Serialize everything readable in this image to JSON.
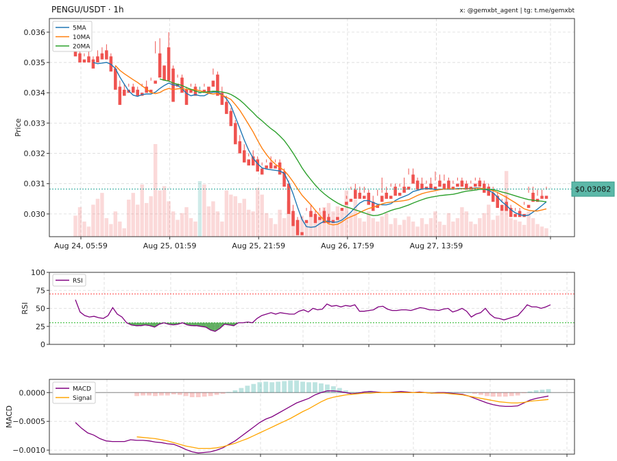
{
  "header": {
    "title": "PENGU/USDT · 1h",
    "credit": "x: @gemxbt_agent | tg: t.me/gemxbt"
  },
  "price_tag": "$0.03082",
  "colors": {
    "up": "#26a69a",
    "down": "#ef5350",
    "ma5": "#1f77b4",
    "ma10": "#ff7f0e",
    "ma20": "#2ca02c",
    "rsi": "#800080",
    "macd": "#800080",
    "signal": "#ffa500",
    "overbought": "#ff0000",
    "oversold": "#00aa00",
    "price_tag_bg": "#5cb8a8",
    "price_line": "#26a69a"
  },
  "chart_data": [
    {
      "type": "candlestick",
      "panel": "price",
      "ylabel": "Price",
      "ylim": [
        0.02925,
        0.03645
      ],
      "yticks": [
        0.03,
        0.031,
        0.032,
        0.033,
        0.034,
        0.035,
        0.036
      ],
      "ytick_labels": [
        "0.030",
        "0.031",
        "0.032",
        "0.033",
        "0.034",
        "0.035",
        "0.036"
      ],
      "xtick_labels": [
        "Aug 24, 05:59",
        "Aug 25, 01:59",
        "Aug 25, 21:59",
        "Aug 26, 17:59",
        "Aug 27, 13:59"
      ],
      "xtick_index": [
        0,
        20,
        40,
        60,
        80
      ],
      "num_candles": 107,
      "last_price": 0.03082,
      "legend": [
        "5MA",
        "10MA",
        "20MA"
      ],
      "legend_position": "upper-left",
      "grid": true,
      "candles": [
        [
          0.0355,
          0.0356,
          0.0353,
          0.0352
        ],
        [
          0.0353,
          0.0354,
          0.0351,
          0.035
        ],
        [
          0.0351,
          0.0353,
          0.0352,
          0.035
        ],
        [
          0.0352,
          0.0354,
          0.0351,
          0.035
        ],
        [
          0.0351,
          0.0352,
          0.0349,
          0.0348
        ],
        [
          0.0352,
          0.0354,
          0.0351,
          0.035
        ],
        [
          0.0353,
          0.0355,
          0.0352,
          0.0351
        ],
        [
          0.0354,
          0.0356,
          0.0352,
          0.0351
        ],
        [
          0.0352,
          0.0353,
          0.0348,
          0.0347
        ],
        [
          0.0348,
          0.0349,
          0.0342,
          0.0341
        ],
        [
          0.0342,
          0.0344,
          0.0341,
          0.0336
        ],
        [
          0.0341,
          0.0343,
          0.0341,
          0.0339
        ],
        [
          0.0341,
          0.0343,
          0.0342,
          0.034
        ],
        [
          0.0342,
          0.0343,
          0.0341,
          0.034
        ],
        [
          0.0341,
          0.0342,
          0.034,
          0.0339
        ],
        [
          0.034,
          0.0343,
          0.0342,
          0.0339
        ],
        [
          0.0342,
          0.0344,
          0.0341,
          0.034
        ],
        [
          0.0341,
          0.0345,
          0.0344,
          0.034
        ],
        [
          0.0344,
          0.0357,
          0.0353,
          0.0343
        ],
        [
          0.0353,
          0.0358,
          0.0349,
          0.0345
        ],
        [
          0.0349,
          0.0355,
          0.0355,
          0.0344
        ],
        [
          0.0355,
          0.036,
          0.0348,
          0.0344
        ],
        [
          0.0348,
          0.0349,
          0.0343,
          0.0337
        ],
        [
          0.0343,
          0.0346,
          0.0345,
          0.0342
        ],
        [
          0.0345,
          0.0346,
          0.0341,
          0.034
        ],
        [
          0.0341,
          0.0342,
          0.0341,
          0.0336
        ],
        [
          0.0341,
          0.0343,
          0.0342,
          0.034
        ],
        [
          0.0342,
          0.0343,
          0.034,
          0.0339
        ],
        [
          0.034,
          0.0342,
          0.0341,
          0.034
        ],
        [
          0.0341,
          0.0343,
          0.0342,
          0.034
        ],
        [
          0.0342,
          0.0344,
          0.0344,
          0.034
        ],
        [
          0.0344,
          0.0348,
          0.0346,
          0.0342
        ],
        [
          0.0346,
          0.0347,
          0.034,
          0.0339
        ],
        [
          0.034,
          0.0342,
          0.0337,
          0.0336
        ],
        [
          0.0337,
          0.0339,
          0.0334,
          0.0333
        ],
        [
          0.0334,
          0.0335,
          0.033,
          0.0329
        ],
        [
          0.033,
          0.0331,
          0.0324,
          0.0323
        ],
        [
          0.0324,
          0.0326,
          0.0321,
          0.032
        ],
        [
          0.0321,
          0.0323,
          0.0318,
          0.0317
        ],
        [
          0.0318,
          0.032,
          0.0319,
          0.0316
        ],
        [
          0.0319,
          0.0321,
          0.0318,
          0.0316
        ],
        [
          0.0318,
          0.0319,
          0.0315,
          0.0314
        ],
        [
          0.0315,
          0.0317,
          0.0316,
          0.0313
        ],
        [
          0.0316,
          0.0318,
          0.0317,
          0.0315
        ],
        [
          0.0317,
          0.0319,
          0.0316,
          0.0315
        ],
        [
          0.0316,
          0.0318,
          0.0317,
          0.0315
        ],
        [
          0.0317,
          0.0318,
          0.0314,
          0.0313
        ],
        [
          0.0314,
          0.0315,
          0.031,
          0.0309
        ],
        [
          0.031,
          0.0311,
          0.0301,
          0.03
        ],
        [
          0.0301,
          0.0303,
          0.0298,
          0.0296
        ],
        [
          0.0298,
          0.0299,
          0.0294,
          0.0293
        ],
        [
          0.0294,
          0.0299,
          0.0298,
          0.0293
        ],
        [
          0.0298,
          0.0302,
          0.0301,
          0.0297
        ],
        [
          0.0301,
          0.0303,
          0.03,
          0.0299
        ],
        [
          0.03,
          0.0301,
          0.0299,
          0.0297
        ],
        [
          0.0299,
          0.0302,
          0.0301,
          0.0298
        ],
        [
          0.0301,
          0.0302,
          0.0299,
          0.0297
        ],
        [
          0.0299,
          0.03,
          0.0298,
          0.0297
        ],
        [
          0.0298,
          0.0299,
          0.0299,
          0.0297
        ],
        [
          0.0299,
          0.0302,
          0.0302,
          0.0298
        ],
        [
          0.0302,
          0.0304,
          0.0304,
          0.0301
        ],
        [
          0.0304,
          0.0306,
          0.0305,
          0.0303
        ],
        [
          0.0305,
          0.0309,
          0.0308,
          0.0304
        ],
        [
          0.0308,
          0.031,
          0.0307,
          0.0305
        ],
        [
          0.0307,
          0.0309,
          0.0306,
          0.0305
        ],
        [
          0.0306,
          0.0309,
          0.0307,
          0.0305
        ],
        [
          0.0307,
          0.0308,
          0.0304,
          0.0303
        ],
        [
          0.0304,
          0.0306,
          0.0303,
          0.0301
        ],
        [
          0.0303,
          0.0308,
          0.0306,
          0.0302
        ],
        [
          0.0306,
          0.0312,
          0.0307,
          0.0304
        ],
        [
          0.0307,
          0.0309,
          0.0306,
          0.0305
        ],
        [
          0.0306,
          0.031,
          0.0309,
          0.0305
        ],
        [
          0.0309,
          0.031,
          0.0307,
          0.0306
        ],
        [
          0.0307,
          0.031,
          0.0309,
          0.0306
        ],
        [
          0.0309,
          0.0312,
          0.0309,
          0.0307
        ],
        [
          0.0309,
          0.0315,
          0.0313,
          0.0308
        ],
        [
          0.0313,
          0.0315,
          0.0311,
          0.031
        ],
        [
          0.0311,
          0.0312,
          0.031,
          0.0308
        ],
        [
          0.031,
          0.0312,
          0.0309,
          0.0308
        ],
        [
          0.0309,
          0.0311,
          0.031,
          0.0308
        ],
        [
          0.031,
          0.0312,
          0.0309,
          0.0308
        ],
        [
          0.0309,
          0.0314,
          0.0311,
          0.0308
        ],
        [
          0.0311,
          0.0313,
          0.031,
          0.0309
        ],
        [
          0.031,
          0.0313,
          0.0311,
          0.0308
        ],
        [
          0.0311,
          0.0312,
          0.0309,
          0.0308
        ],
        [
          0.0309,
          0.0311,
          0.031,
          0.0308
        ],
        [
          0.031,
          0.0312,
          0.0311,
          0.0309
        ],
        [
          0.0311,
          0.0312,
          0.031,
          0.0309
        ],
        [
          0.031,
          0.0311,
          0.0309,
          0.0308
        ],
        [
          0.0309,
          0.0311,
          0.031,
          0.0308
        ],
        [
          0.031,
          0.0312,
          0.0311,
          0.0309
        ],
        [
          0.0311,
          0.0312,
          0.031,
          0.0309
        ],
        [
          0.031,
          0.0311,
          0.0309,
          0.0307
        ],
        [
          0.0309,
          0.031,
          0.0307,
          0.0306
        ],
        [
          0.0307,
          0.0309,
          0.0306,
          0.0304
        ],
        [
          0.0306,
          0.0307,
          0.0303,
          0.0302
        ],
        [
          0.0303,
          0.0305,
          0.0304,
          0.0301
        ],
        [
          0.0304,
          0.0306,
          0.0302,
          0.0301
        ],
        [
          0.0302,
          0.0303,
          0.03,
          0.0299
        ],
        [
          0.03,
          0.0302,
          0.0301,
          0.0299
        ],
        [
          0.0301,
          0.0302,
          0.03,
          0.0299
        ],
        [
          0.03,
          0.0304,
          0.0303,
          0.0299
        ],
        [
          0.0303,
          0.0309,
          0.0307,
          0.0302
        ],
        [
          0.0307,
          0.0309,
          0.0305,
          0.0304
        ],
        [
          0.0305,
          0.0308,
          0.0306,
          0.0304
        ],
        [
          0.0306,
          0.0308,
          0.0306,
          0.0305
        ],
        [
          0.0306,
          0.0309,
          0.0308,
          0.0305
        ]
      ],
      "volume": [
        0.25,
        0.35,
        0.18,
        0.12,
        0.38,
        0.45,
        0.52,
        0.22,
        0.15,
        0.3,
        0.18,
        0.1,
        0.44,
        0.52,
        0.38,
        0.62,
        0.4,
        0.48,
        1.1,
        0.55,
        0.6,
        0.42,
        0.3,
        0.2,
        0.28,
        0.35,
        0.22,
        0.18,
        0.66,
        0.62,
        0.36,
        0.42,
        0.3,
        0.18,
        0.55,
        0.5,
        0.48,
        0.4,
        0.45,
        0.32,
        0.3,
        0.58,
        0.5,
        0.28,
        0.22,
        0.15,
        0.32,
        0.22,
        0.42,
        0.28,
        0.2,
        0.25,
        0.18,
        0.28,
        0.2,
        0.3,
        0.35,
        0.4,
        0.3,
        0.36,
        0.3,
        0.55,
        0.28,
        0.44,
        0.22,
        0.18,
        0.3,
        0.22,
        0.18,
        0.24,
        0.28,
        0.15,
        0.22,
        0.14,
        0.2,
        0.24,
        0.18,
        0.12,
        0.22,
        0.15,
        0.22,
        0.3,
        0.18,
        0.14,
        0.28,
        0.18,
        0.22,
        0.35,
        0.3,
        0.18,
        0.15,
        0.22,
        0.28,
        0.38,
        0.2,
        0.25,
        0.3,
        0.78,
        0.22,
        0.2,
        0.18,
        0.14,
        0.3,
        0.22,
        0.15,
        0.12,
        0.1
      ]
    },
    {
      "type": "line",
      "panel": "rsi",
      "ylabel": "RSI",
      "ylim": [
        0,
        100
      ],
      "yticks": [
        0,
        25,
        50,
        75,
        100
      ],
      "ytick_labels": [
        "0",
        "25",
        "50",
        "75",
        "100"
      ],
      "overbought": 70,
      "oversold": 30,
      "legend": [
        "RSI"
      ],
      "legend_position": "upper-left",
      "grid": true,
      "series": [
        {
          "name": "RSI",
          "values": [
            62,
            45,
            40,
            38,
            39,
            37,
            36,
            40,
            51,
            42,
            38,
            30,
            27,
            26,
            26,
            27,
            26,
            24,
            28,
            30,
            28,
            27,
            28,
            30,
            27,
            26,
            26,
            25,
            24,
            20,
            18,
            22,
            28,
            27,
            26,
            30,
            30,
            31,
            30,
            36,
            40,
            42,
            44,
            42,
            44,
            43,
            42,
            42,
            46,
            48,
            45,
            50,
            48,
            49,
            56,
            53,
            54,
            52,
            54,
            53,
            55,
            46,
            46,
            47,
            48,
            52,
            53,
            49,
            47,
            47,
            48,
            48,
            47,
            49,
            51,
            50,
            48,
            48,
            47,
            49,
            50,
            45,
            47,
            50,
            46,
            38,
            42,
            44,
            50,
            42,
            37,
            36,
            34,
            36,
            38,
            40,
            47,
            55,
            52,
            52,
            50,
            52,
            55
          ]
        }
      ]
    },
    {
      "type": "line",
      "panel": "macd",
      "ylabel": "MACD",
      "ylim": [
        -0.00107,
        0.00023
      ],
      "yticks": [
        -0.001,
        -0.0005,
        0.0
      ],
      "ytick_labels": [
        "−0.0010",
        "−0.0005",
        "0.0000"
      ],
      "legend": [
        "MACD",
        "Signal"
      ],
      "legend_position": "upper-left",
      "grid": true,
      "series": [
        {
          "name": "MACD",
          "values": [
            -0.00052,
            -0.00062,
            -0.0007,
            -0.00074,
            -0.0008,
            -0.00084,
            -0.00085,
            -0.00085,
            -0.00085,
            -0.00082,
            -0.00083,
            -0.00083,
            -0.00084,
            -0.00086,
            -0.00087,
            -0.00089,
            -0.0009,
            -0.00094,
            -0.00099,
            -0.00103,
            -0.00105,
            -0.00104,
            -0.00103,
            -0.001,
            -0.00096,
            -0.0009,
            -0.00084,
            -0.00076,
            -0.00068,
            -0.0006,
            -0.00052,
            -0.00046,
            -0.00042,
            -0.00036,
            -0.0003,
            -0.00024,
            -0.00018,
            -0.00014,
            -0.0001,
            -4e-05,
            0.0,
            3e-05,
            3e-05,
            2e-05,
            0.0,
            -2e-05,
            -1e-05,
            1e-05,
            2e-05,
            1e-05,
            0.0,
            0.0,
            1e-05,
            2e-05,
            1e-05,
            0.0,
            1e-05,
            0.0,
            -1e-05,
            0.0,
            0.0,
            -1e-05,
            -2e-05,
            -3e-05,
            -6e-05,
            -0.0001,
            -0.00014,
            -0.00018,
            -0.00021,
            -0.00023,
            -0.00024,
            -0.00024,
            -0.00023,
            -0.00018,
            -0.00013,
            -0.0001,
            -8e-05,
            -6e-05
          ]
        },
        {
          "name": "Signal",
          "values": [
            null,
            null,
            null,
            null,
            null,
            null,
            null,
            null,
            null,
            null,
            -0.00077,
            -0.00078,
            -0.00079,
            -0.0008,
            -0.00082,
            -0.00084,
            -0.00087,
            -0.0009,
            -0.00093,
            -0.00095,
            -0.00097,
            -0.00097,
            -0.00097,
            -0.00096,
            -0.00094,
            -0.00091,
            -0.00088,
            -0.00084,
            -0.0008,
            -0.00075,
            -0.0007,
            -0.00065,
            -0.0006,
            -0.00055,
            -0.0005,
            -0.00045,
            -0.00039,
            -0.00033,
            -0.00028,
            -0.00022,
            -0.00016,
            -0.00011,
            -8e-05,
            -6e-05,
            -4e-05,
            -3e-05,
            -2e-05,
            -1e-05,
            -1e-05,
            0.0,
            0.0,
            0.0,
            0.0,
            0.0,
            0.0,
            0.0,
            0.0,
            0.0,
            -1e-05,
            -1e-05,
            -1e-05,
            -2e-05,
            -3e-05,
            -4e-05,
            -6e-05,
            -8e-05,
            -0.0001,
            -0.00012,
            -0.00014,
            -0.00016,
            -0.00017,
            -0.00018,
            -0.00018,
            -0.00017,
            -0.00015,
            -0.00014,
            -0.00013,
            -0.00012
          ]
        }
      ],
      "histogram": [
        null,
        null,
        null,
        null,
        null,
        null,
        null,
        null,
        null,
        null,
        -6e-05,
        -5e-05,
        -5e-05,
        -6e-05,
        -5e-05,
        -5e-05,
        -3e-05,
        -4e-05,
        -6e-05,
        -8e-05,
        -8e-05,
        -7e-05,
        -6e-05,
        -4e-05,
        -2e-05,
        1e-05,
        4e-05,
        8e-05,
        0.00012,
        0.00015,
        0.00018,
        0.00019,
        0.00018,
        0.00019,
        0.0002,
        0.00021,
        0.00021,
        0.00019,
        0.00018,
        0.00018,
        0.00016,
        0.00014,
        0.00011,
        8e-05,
        4e-05,
        1e-05,
        1e-05,
        2e-05,
        3e-05,
        1e-05,
        0.0,
        0.0,
        1e-05,
        2e-05,
        1e-05,
        0.0,
        1e-05,
        0.0,
        0.0,
        1e-05,
        1e-05,
        1e-05,
        1e-05,
        1e-05,
        0.0,
        -2e-05,
        -4e-05,
        -6e-05,
        -7e-05,
        -7e-05,
        -7e-05,
        -6e-05,
        -5e-05,
        -1e-05,
        2e-05,
        4e-05,
        5e-05,
        6e-05
      ]
    }
  ]
}
